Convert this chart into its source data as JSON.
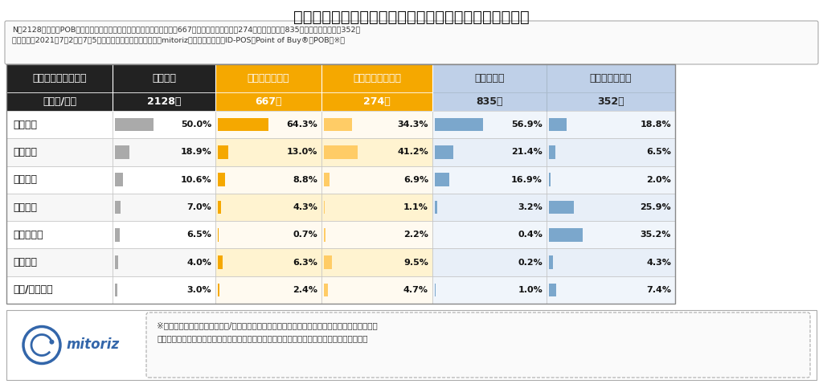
{
  "title": "図表１）４チェーンにおけるメーン利用者の居住エリア",
  "note_line1": "N＝2128人、全国POB会員男女（メーン利用チェーン：マツモトキヨシ667人、ココカラファイン274人、ウエルシア835人、ツルハドラッグ352人",
  "note_line2": "調査期間：2021年7月2日～7月5日　インターネットリサーチ　mitoriz調べ　マルチプルID-POS「Point of Buy®（POB）※」",
  "footer_note_l1": "※全国の消費者から実際に購入/利用したレシートを収集し、ブランドカテゴリや利用サービス、",
  "footer_note_l2": "実際の飲食店ごとのレシートを通して集計したマルチプルリテール購買データのデータベース",
  "header_row1": [
    "メーン利用チェーン",
    "４社平均",
    "マツモトキヨシ",
    "ココカラファイン",
    "ウエルシア",
    "ツルハドラッグ"
  ],
  "header_row2": [
    "エリア/人数",
    "2128人",
    "667人",
    "274人",
    "835人",
    "352人"
  ],
  "row_labels": [
    "関東地方",
    "関西地方",
    "中部地方",
    "東北地方",
    "北海道地方",
    "九州地方",
    "中国/四国地方"
  ],
  "data": {
    "avg": [
      50.0,
      18.9,
      10.6,
      7.0,
      6.5,
      4.0,
      3.0
    ],
    "matsumoto": [
      64.3,
      13.0,
      8.8,
      4.3,
      0.7,
      6.3,
      2.4
    ],
    "cocokara": [
      34.3,
      41.2,
      6.9,
      1.1,
      2.2,
      9.5,
      4.7
    ],
    "welcia": [
      56.9,
      21.4,
      16.9,
      3.2,
      0.4,
      0.2,
      1.0
    ],
    "tsuruha": [
      18.8,
      6.5,
      2.0,
      25.9,
      35.2,
      4.3,
      7.4
    ]
  },
  "colors": {
    "header_black": "#222222",
    "header_orange_bg": "#F5A800",
    "header_blue_bg": "#BFD0E8",
    "bar_gray": "#AAAAAA",
    "bar_gray_dark": "#999999",
    "bar_orange": "#F5A800",
    "bar_orange_light": "#FFCC66",
    "bar_blue": "#7BA7CC",
    "border_color": "#BBBBBB",
    "text_black": "#111111",
    "row_even": "#FFFFFF",
    "row_odd": "#F7F7F7",
    "row_orange_even": "#FFFAF0",
    "row_orange_odd": "#FFF3D0",
    "row_blue_even": "#F0F5FB",
    "row_blue_odd": "#E8EFF8"
  },
  "fig_bg": "#FFFFFF",
  "max_bar": 70.0
}
